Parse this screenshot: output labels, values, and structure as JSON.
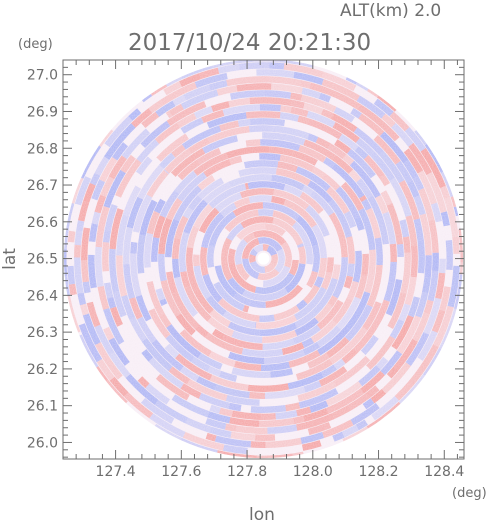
{
  "header": {
    "altitude": "ALT(km) 2.0",
    "datetime": "2017/10/24 20:21:30"
  },
  "chart_data": {
    "type": "heatmap",
    "title": "2017/10/24 20:21:30",
    "subtitle": "ALT(km) 2.0",
    "xlabel": "lon",
    "ylabel": "lat",
    "x_unit": "(deg)",
    "y_unit": "(deg)",
    "xlim": [
      127.24,
      128.46
    ],
    "ylim": [
      25.955,
      27.04
    ],
    "x_ticks": [
      "127.4",
      "127.6",
      "127.8",
      "128.0",
      "128.2",
      "128.4"
    ],
    "y_ticks": [
      "26.0",
      "26.1",
      "26.2",
      "26.3",
      "26.4",
      "26.5",
      "26.6",
      "26.7",
      "26.8",
      "26.9",
      "27.0"
    ],
    "center": {
      "lon": 127.85,
      "lat": 26.5
    },
    "colors": {
      "positive": "#f4a0a0",
      "negative": "#a8b0f4",
      "background": "#ffffff",
      "axis": "#6e6e6e"
    },
    "grid": false
  }
}
